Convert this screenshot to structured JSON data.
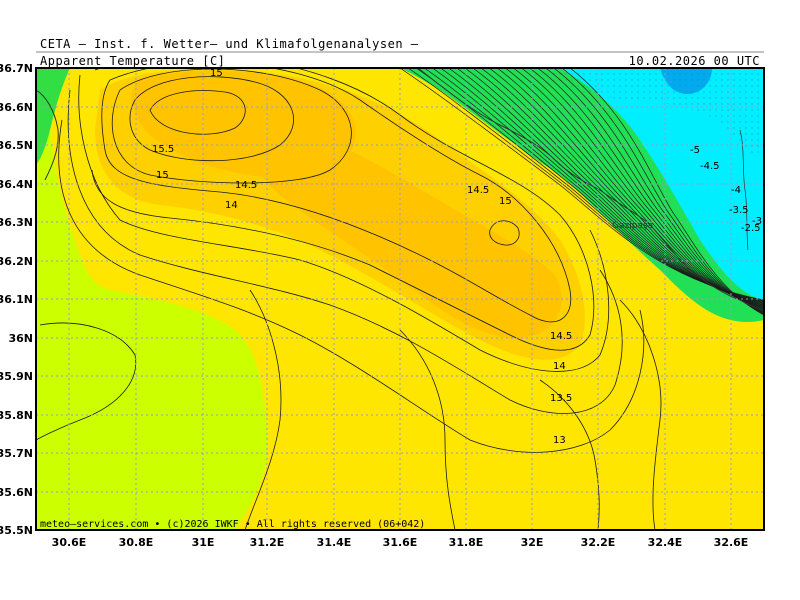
{
  "header": {
    "provider": "CETA — Inst. f. Wetter— und Klimafolgenanalysen —",
    "parameter": "Apparent Temperature [C]",
    "valid_time": "10.02.2026 00 UTC"
  },
  "footer": {
    "credit": "meteo—services.com • (c)2026 IWKF • All rights reserved (06+042)"
  },
  "axes": {
    "longitude_ticks": [
      "30.6E",
      "30.8E",
      "31E",
      "31.2E",
      "31.4E",
      "31.6E",
      "31.8E",
      "32E",
      "32.2E",
      "32.4E",
      "32.6E"
    ],
    "latitude_ticks": [
      "36.7N",
      "36.6N",
      "36.5N",
      "36.4N",
      "36.3N",
      "36.2N",
      "36.1N",
      "36N",
      "35.9N",
      "35.8N",
      "35.7N",
      "35.6N",
      "35.5N"
    ]
  },
  "places": {
    "city": "Gazipaşa"
  },
  "contour_labels": {
    "c15_top": "15",
    "c15_5": "15.5",
    "c15_left": "15",
    "c14_5_left": "14.5",
    "c14_left": "14",
    "c14_5_mid": "14.5",
    "c15_mid": "15",
    "c14_5_low": "14.5",
    "c14_low": "14",
    "c13_5": "13.5",
    "c13": "13",
    "cm5": "-5",
    "cm4_5": "-4.5",
    "cm4": "-4",
    "cm3_5": "-3.5",
    "cm3": "-3",
    "cm2_5": "-2.5"
  },
  "colors": {
    "yellow_green": "#ccff00",
    "yellow": "#ffe600",
    "orange_light": "#ffd000",
    "orange": "#ffc300",
    "green": "#00dd44",
    "cyan": "#00f0ff",
    "blue": "#00aaee",
    "grid": "#9999cc"
  }
}
